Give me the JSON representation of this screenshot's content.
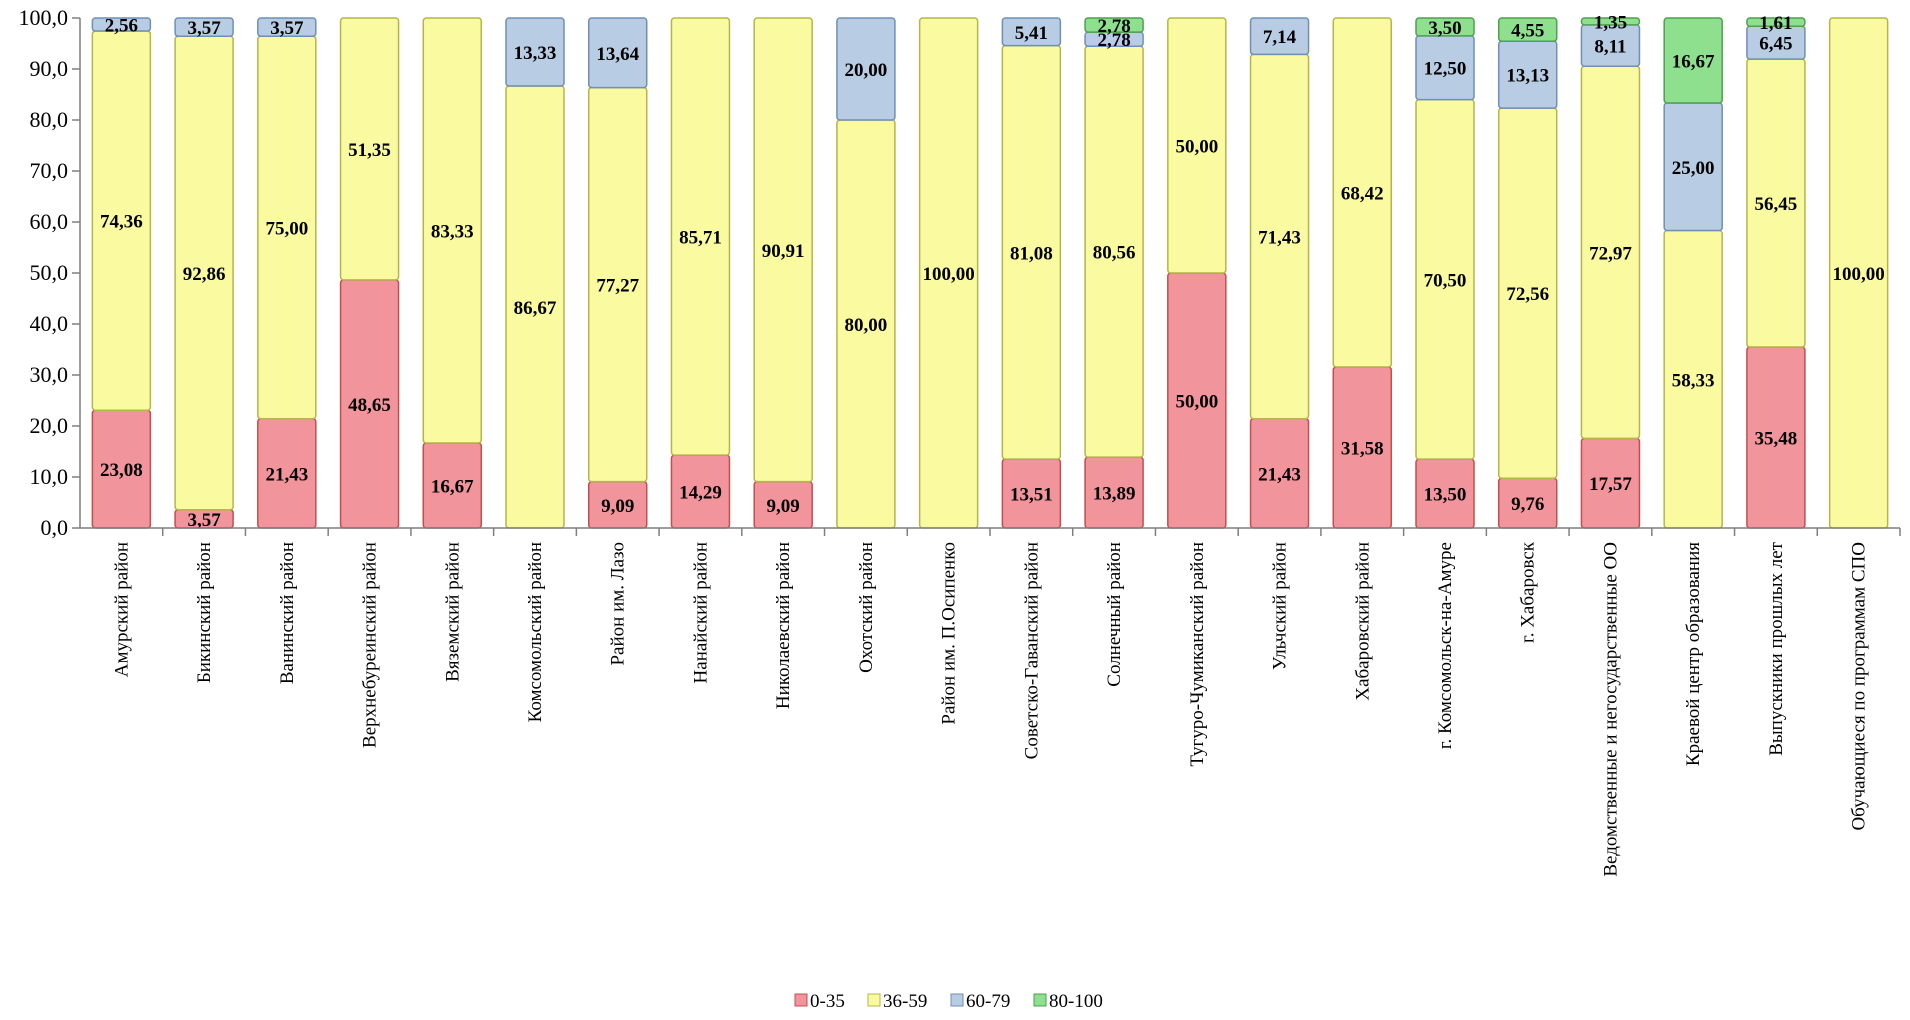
{
  "chart_data": {
    "type": "bar",
    "stacked": true,
    "ylim": [
      0,
      100
    ],
    "yticks": [
      "0,0",
      "10,0",
      "20,0",
      "30,0",
      "40,0",
      "50,0",
      "60,0",
      "70,0",
      "80,0",
      "90,0",
      "100,0"
    ],
    "ytick_values": [
      0,
      10,
      20,
      30,
      40,
      50,
      60,
      70,
      80,
      90,
      100
    ],
    "grid": false,
    "legend_position": "bottom",
    "categories": [
      "Амурский район",
      "Бикинский район",
      "Ванинский район",
      "Верхнебуреинский район",
      "Вяземский район",
      "Комсомольский район",
      "Район им. Лазо",
      "Нанайский район",
      "Николаевский район",
      "Охотский район",
      "Район им. П.Осипенко",
      "Советско-Гаванский район",
      "Солнечный район",
      "Тугуро-Чумиканский район",
      "Ульчский район",
      "Хабаровский район",
      "г. Комсомольск-на-Амуре",
      "г. Хабаровск",
      "Ведомственные и негосударственные ОО",
      "Краевой центр образования",
      "Выпускники прошлых лет",
      "Обучающиеся по программам СПО"
    ],
    "series": [
      {
        "name": "0-35",
        "color": "#f2949c",
        "values": [
          23.08,
          3.57,
          21.43,
          48.65,
          16.67,
          0,
          9.09,
          14.29,
          9.09,
          0,
          0,
          13.51,
          13.89,
          50.0,
          21.43,
          31.58,
          13.5,
          9.76,
          17.57,
          0,
          35.48,
          0
        ],
        "labels": [
          "23,08",
          "3,57",
          "21,43",
          "48,65",
          "16,67",
          "",
          "9,09",
          "14,29",
          "9,09",
          "",
          "",
          "13,51",
          "13,89",
          "50,00",
          "21,43",
          "31,58",
          "13,50",
          "9,76",
          "17,57",
          "",
          "35,48",
          ""
        ]
      },
      {
        "name": "36-59",
        "color": "#fafaa0",
        "values": [
          74.36,
          92.86,
          75.0,
          51.35,
          83.33,
          86.67,
          77.27,
          85.71,
          90.91,
          80.0,
          100.0,
          81.08,
          80.56,
          50.0,
          71.43,
          68.42,
          70.5,
          72.56,
          72.97,
          58.33,
          56.45,
          100.0
        ],
        "labels": [
          "74,36",
          "92,86",
          "75,00",
          "51,35",
          "83,33",
          "86,67",
          "77,27",
          "85,71",
          "90,91",
          "80,00",
          "100,00",
          "81,08",
          "80,56",
          "50,00",
          "71,43",
          "68,42",
          "70,50",
          "72,56",
          "72,97",
          "58,33",
          "56,45",
          "100,00"
        ]
      },
      {
        "name": "60-79",
        "color": "#b8cce4",
        "values": [
          2.56,
          3.57,
          3.57,
          0,
          0,
          13.33,
          13.64,
          0,
          0,
          20.0,
          0,
          5.41,
          2.78,
          0,
          7.14,
          0,
          12.5,
          13.13,
          8.11,
          25.0,
          6.45,
          0
        ],
        "labels": [
          "2,56",
          "3,57",
          "3,57",
          "",
          "",
          "13,33",
          "13,64",
          "",
          "",
          "20,00",
          "",
          "5,41",
          "2,78",
          "",
          "7,14",
          "",
          "12,50",
          "13,13",
          "8,11",
          "25,00",
          "6,45",
          ""
        ]
      },
      {
        "name": "80-100",
        "color": "#8ee08e",
        "values": [
          0,
          0,
          0,
          0,
          0,
          0,
          0,
          0,
          0,
          0,
          0,
          0,
          2.78,
          0,
          0,
          0,
          3.5,
          4.55,
          1.35,
          16.67,
          1.61,
          0
        ],
        "labels": [
          "",
          "",
          "",
          "",
          "",
          "",
          "",
          "",
          "",
          "",
          "",
          "",
          "2,78",
          "",
          "",
          "",
          "3,50",
          "4,55",
          "1,35",
          "16,67",
          "1,61",
          ""
        ]
      }
    ]
  }
}
